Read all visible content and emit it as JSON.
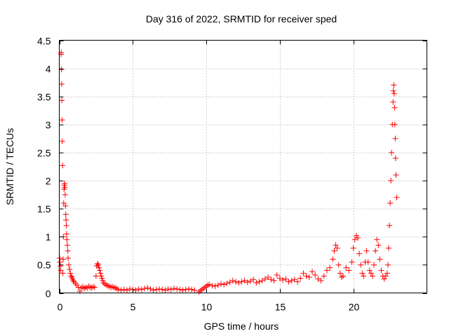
{
  "chart_data": {
    "type": "scatter",
    "title": "Day 316 of 2022, SRMTID for receiver sped",
    "xlabel": "GPS time / hours",
    "ylabel": "SRMTID / TECUs",
    "xlim": [
      0,
      25
    ],
    "ylim": [
      0,
      4.5
    ],
    "x_ticks": [
      0,
      5,
      10,
      15,
      20
    ],
    "x_tick_labels": [
      "0",
      "5",
      "10",
      "15",
      "20"
    ],
    "y_ticks": [
      0,
      0.5,
      1,
      1.5,
      2,
      2.5,
      3,
      3.5,
      4,
      4.5
    ],
    "y_tick_labels": [
      "0",
      "0.5",
      "1",
      "1.5",
      "2",
      "2.5",
      "3",
      "3.5",
      "4",
      "4.5"
    ],
    "grid": true,
    "marker": "+",
    "series": [
      {
        "name": "SRMTID",
        "color": "#ff0000",
        "points": [
          [
            0.02,
            0.62
          ],
          [
            0.05,
            0.55
          ],
          [
            0.08,
            0.48
          ],
          [
            0.1,
            0.4
          ],
          [
            0.12,
            4.25
          ],
          [
            0.13,
            4.28
          ],
          [
            0.15,
            3.98
          ],
          [
            0.16,
            3.72
          ],
          [
            0.17,
            3.43
          ],
          [
            0.19,
            3.08
          ],
          [
            0.2,
            2.7
          ],
          [
            0.22,
            2.27
          ],
          [
            0.24,
            0.35
          ],
          [
            0.26,
            0.6
          ],
          [
            0.28,
            1.0
          ],
          [
            0.3,
            1.6
          ],
          [
            0.32,
            1.85
          ],
          [
            0.34,
            1.92
          ],
          [
            0.36,
            1.95
          ],
          [
            0.38,
            1.88
          ],
          [
            0.4,
            1.75
          ],
          [
            0.42,
            1.55
          ],
          [
            0.44,
            1.4
          ],
          [
            0.46,
            1.3
          ],
          [
            0.48,
            1.2
          ],
          [
            0.5,
            1.05
          ],
          [
            0.52,
            0.95
          ],
          [
            0.55,
            0.85
          ],
          [
            0.58,
            0.75
          ],
          [
            0.6,
            0.62
          ],
          [
            0.65,
            0.5
          ],
          [
            0.7,
            0.42
          ],
          [
            0.75,
            0.35
          ],
          [
            0.8,
            0.3
          ],
          [
            0.85,
            0.28
          ],
          [
            0.9,
            0.25
          ],
          [
            0.95,
            0.22
          ],
          [
            1.0,
            0.2
          ],
          [
            1.1,
            0.17
          ],
          [
            1.2,
            0.14
          ],
          [
            1.3,
            0.1
          ],
          [
            1.4,
            0.03
          ],
          [
            1.5,
            0.09
          ],
          [
            1.6,
            0.11
          ],
          [
            1.7,
            0.08
          ],
          [
            1.8,
            0.1
          ],
          [
            1.9,
            0.09
          ],
          [
            2.0,
            0.12
          ],
          [
            2.1,
            0.1
          ],
          [
            2.2,
            0.09
          ],
          [
            2.3,
            0.11
          ],
          [
            2.4,
            0.1
          ],
          [
            2.5,
            0.3
          ],
          [
            2.55,
            0.48
          ],
          [
            2.6,
            0.52
          ],
          [
            2.65,
            0.5
          ],
          [
            2.7,
            0.45
          ],
          [
            2.75,
            0.4
          ],
          [
            2.8,
            0.35
          ],
          [
            2.85,
            0.3
          ],
          [
            2.9,
            0.26
          ],
          [
            2.95,
            0.22
          ],
          [
            3.0,
            0.18
          ],
          [
            3.1,
            0.16
          ],
          [
            3.2,
            0.14
          ],
          [
            3.3,
            0.13
          ],
          [
            3.4,
            0.12
          ],
          [
            3.5,
            0.1
          ],
          [
            3.6,
            0.11
          ],
          [
            3.7,
            0.1
          ],
          [
            3.8,
            0.09
          ],
          [
            3.9,
            0.08
          ],
          [
            4.0,
            0.06
          ],
          [
            4.2,
            0.05
          ],
          [
            4.4,
            0.06
          ],
          [
            4.6,
            0.05
          ],
          [
            4.8,
            0.07
          ],
          [
            5.0,
            0.06
          ],
          [
            5.2,
            0.05
          ],
          [
            5.4,
            0.07
          ],
          [
            5.6,
            0.06
          ],
          [
            5.8,
            0.08
          ],
          [
            6.0,
            0.09
          ],
          [
            6.2,
            0.07
          ],
          [
            6.4,
            0.05
          ],
          [
            6.6,
            0.06
          ],
          [
            6.8,
            0.07
          ],
          [
            7.0,
            0.06
          ],
          [
            7.2,
            0.05
          ],
          [
            7.4,
            0.07
          ],
          [
            7.6,
            0.06
          ],
          [
            7.8,
            0.08
          ],
          [
            8.0,
            0.07
          ],
          [
            8.2,
            0.06
          ],
          [
            8.4,
            0.05
          ],
          [
            8.6,
            0.06
          ],
          [
            8.8,
            0.07
          ],
          [
            9.0,
            0.06
          ],
          [
            9.2,
            0.05
          ],
          [
            9.5,
            0.02
          ],
          [
            9.6,
            0.04
          ],
          [
            9.7,
            0.06
          ],
          [
            9.8,
            0.08
          ],
          [
            9.9,
            0.1
          ],
          [
            10.0,
            0.12
          ],
          [
            10.1,
            0.14
          ],
          [
            10.2,
            0.15
          ],
          [
            10.4,
            0.13
          ],
          [
            10.6,
            0.12
          ],
          [
            10.8,
            0.14
          ],
          [
            11.0,
            0.16
          ],
          [
            11.2,
            0.15
          ],
          [
            11.4,
            0.17
          ],
          [
            11.6,
            0.19
          ],
          [
            11.8,
            0.22
          ],
          [
            12.0,
            0.2
          ],
          [
            12.2,
            0.18
          ],
          [
            12.4,
            0.2
          ],
          [
            12.6,
            0.22
          ],
          [
            12.8,
            0.19
          ],
          [
            13.0,
            0.21
          ],
          [
            13.2,
            0.24
          ],
          [
            13.4,
            0.18
          ],
          [
            13.6,
            0.2
          ],
          [
            13.8,
            0.22
          ],
          [
            14.0,
            0.25
          ],
          [
            14.2,
            0.28
          ],
          [
            14.4,
            0.24
          ],
          [
            14.6,
            0.22
          ],
          [
            14.8,
            0.32
          ],
          [
            15.0,
            0.26
          ],
          [
            15.2,
            0.23
          ],
          [
            15.4,
            0.25
          ],
          [
            15.6,
            0.2
          ],
          [
            15.8,
            0.22
          ],
          [
            16.0,
            0.24
          ],
          [
            16.2,
            0.2
          ],
          [
            16.4,
            0.26
          ],
          [
            16.6,
            0.35
          ],
          [
            16.8,
            0.3
          ],
          [
            17.0,
            0.28
          ],
          [
            17.2,
            0.38
          ],
          [
            17.4,
            0.32
          ],
          [
            17.6,
            0.25
          ],
          [
            17.8,
            0.22
          ],
          [
            18.0,
            0.3
          ],
          [
            18.2,
            0.4
          ],
          [
            18.4,
            0.45
          ],
          [
            18.6,
            0.6
          ],
          [
            18.7,
            0.75
          ],
          [
            18.8,
            0.85
          ],
          [
            18.9,
            0.8
          ],
          [
            19.0,
            0.5
          ],
          [
            19.1,
            0.35
          ],
          [
            19.2,
            0.28
          ],
          [
            19.3,
            0.3
          ],
          [
            19.5,
            0.45
          ],
          [
            19.7,
            0.4
          ],
          [
            19.9,
            0.55
          ],
          [
            20.0,
            0.8
          ],
          [
            20.1,
            0.95
          ],
          [
            20.2,
            1.02
          ],
          [
            20.3,
            0.98
          ],
          [
            20.4,
            0.7
          ],
          [
            20.5,
            0.5
          ],
          [
            20.6,
            0.35
          ],
          [
            20.7,
            0.3
          ],
          [
            20.8,
            0.55
          ],
          [
            20.9,
            0.75
          ],
          [
            21.0,
            0.55
          ],
          [
            21.1,
            0.4
          ],
          [
            21.2,
            0.35
          ],
          [
            21.3,
            0.3
          ],
          [
            21.4,
            0.5
          ],
          [
            21.5,
            0.75
          ],
          [
            21.6,
            0.95
          ],
          [
            21.7,
            0.85
          ],
          [
            21.8,
            0.6
          ],
          [
            21.9,
            0.4
          ],
          [
            22.0,
            0.3
          ],
          [
            22.1,
            0.25
          ],
          [
            22.2,
            0.3
          ],
          [
            22.3,
            0.35
          ],
          [
            22.35,
            0.5
          ],
          [
            22.4,
            0.8
          ],
          [
            22.45,
            1.2
          ],
          [
            22.5,
            1.6
          ],
          [
            22.55,
            2.0
          ],
          [
            22.6,
            2.5
          ],
          [
            22.65,
            3.0
          ],
          [
            22.7,
            3.4
          ],
          [
            22.72,
            3.6
          ],
          [
            22.75,
            3.7
          ],
          [
            22.78,
            3.55
          ],
          [
            22.8,
            3.3
          ],
          [
            22.82,
            3.0
          ],
          [
            22.85,
            2.75
          ],
          [
            22.87,
            2.4
          ],
          [
            22.9,
            2.1
          ],
          [
            22.95,
            1.7
          ]
        ]
      }
    ]
  }
}
